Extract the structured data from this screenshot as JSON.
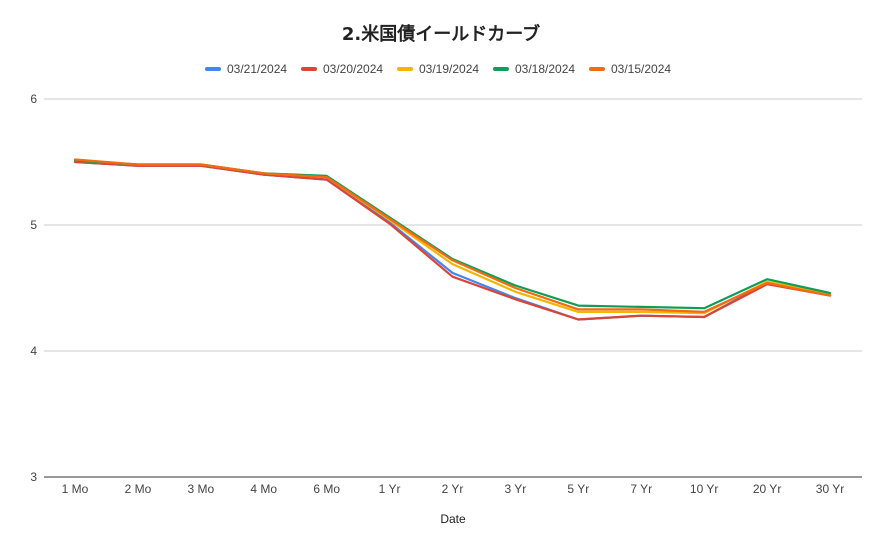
{
  "chart_data": {
    "type": "line",
    "title": "2.米国債イールドカーブ",
    "xlabel": "Date",
    "ylabel": "",
    "categories": [
      "1 Mo",
      "2 Mo",
      "3 Mo",
      "4 Mo",
      "6 Mo",
      "1 Yr",
      "2 Yr",
      "3 Yr",
      "5 Yr",
      "7 Yr",
      "10 Yr",
      "20 Yr",
      "30 Yr"
    ],
    "ylim": [
      3,
      6
    ],
    "yticks": [
      3,
      4,
      5,
      6
    ],
    "grid": true,
    "legend_position": "top",
    "series": [
      {
        "name": "03/21/2024",
        "color": "#4285F4",
        "values": [
          5.5,
          5.47,
          5.47,
          5.4,
          5.36,
          5.02,
          4.62,
          4.42,
          4.25,
          4.28,
          4.27,
          4.54,
          4.44
        ]
      },
      {
        "name": "03/20/2024",
        "color": "#DB4437",
        "values": [
          5.5,
          5.47,
          5.47,
          5.4,
          5.36,
          5.01,
          4.59,
          4.41,
          4.25,
          4.28,
          4.27,
          4.53,
          4.44
        ]
      },
      {
        "name": "03/19/2024",
        "color": "#F4B400",
        "values": [
          5.51,
          5.48,
          5.48,
          5.41,
          5.38,
          5.04,
          4.69,
          4.47,
          4.31,
          4.31,
          4.3,
          4.55,
          4.45
        ]
      },
      {
        "name": "03/18/2024",
        "color": "#0F9D58",
        "values": [
          5.51,
          5.48,
          5.48,
          5.41,
          5.39,
          5.06,
          4.73,
          4.52,
          4.36,
          4.35,
          4.34,
          4.57,
          4.46
        ]
      },
      {
        "name": "03/15/2024",
        "color": "#F26B10",
        "values": [
          5.52,
          5.48,
          5.48,
          5.41,
          5.38,
          5.05,
          4.72,
          4.5,
          4.33,
          4.33,
          4.31,
          4.54,
          4.44
        ]
      }
    ]
  }
}
